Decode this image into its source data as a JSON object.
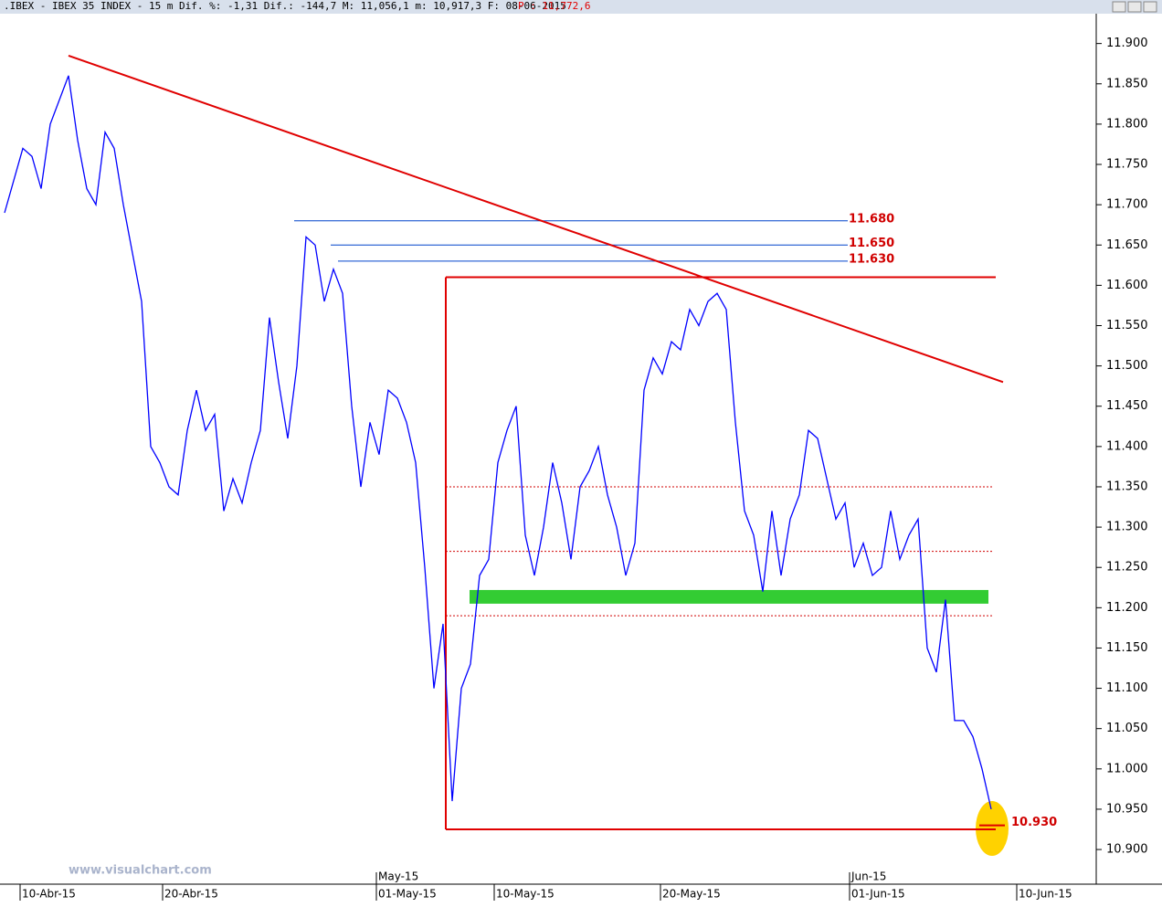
{
  "chart_data": {
    "type": "line",
    "title": ".IBEX - IBEX 35 INDEX -  15 m Dif. %: -1,31 Dif.: -144,7 M: 11,056,1 m: 10,917,3 F: 08-06-2015",
    "price_label": "P : 11,772,6",
    "watermark": "www.visualchart.com",
    "series": [
      {
        "name": "IBEX 35 INDEX",
        "color": "#0000ff",
        "values": [
          11690,
          11730,
          11770,
          11760,
          11720,
          11800,
          11830,
          11860,
          11780,
          11720,
          11700,
          11790,
          11770,
          11700,
          11640,
          11580,
          11400,
          11380,
          11350,
          11340,
          11420,
          11470,
          11420,
          11440,
          11320,
          11360,
          11330,
          11380,
          11420,
          11560,
          11480,
          11410,
          11500,
          11660,
          11650,
          11580,
          11620,
          11590,
          11450,
          11350,
          11430,
          11390,
          11470,
          11460,
          11430,
          11380,
          11250,
          11100,
          11180,
          10960,
          11100,
          11130,
          11240,
          11260,
          11380,
          11420,
          11450,
          11290,
          11240,
          11300,
          11380,
          11330,
          11260,
          11350,
          11370,
          11400,
          11340,
          11300,
          11240,
          11280,
          11470,
          11510,
          11490,
          11530,
          11520,
          11570,
          11550,
          11580,
          11590,
          11570,
          11430,
          11320,
          11290,
          11220,
          11320,
          11240,
          11310,
          11340,
          11420,
          11410,
          11360,
          11310,
          11330,
          11250,
          11280,
          11240,
          11250,
          11320,
          11260,
          11290,
          11310,
          11150,
          11120,
          11210,
          11060,
          11060,
          11040,
          11000,
          10950
        ]
      }
    ],
    "xlim": [
      0,
      120
    ],
    "xticks": [
      {
        "value": 1.7,
        "label": "10-Abr-15"
      },
      {
        "value": 17.3,
        "label": "20-Abr-15"
      },
      {
        "value": 40.7,
        "label": "01-May-15"
      },
      {
        "value": 53.6,
        "label": "10-May-15"
      },
      {
        "value": 71.8,
        "label": "20-May-15"
      },
      {
        "value": 92.5,
        "label": "01-Jun-15"
      },
      {
        "value": 110.8,
        "label": "10-Jun-15"
      }
    ],
    "month_labels": [
      {
        "value": 40.7,
        "label": "May-15"
      },
      {
        "value": 92.5,
        "label": "Jun-15"
      }
    ],
    "ylim": [
      10857,
      11954
    ],
    "yticks": [
      {
        "value": 11900,
        "label": "11.900"
      },
      {
        "value": 11850,
        "label": "11.850"
      },
      {
        "value": 11800,
        "label": "11.800"
      },
      {
        "value": 11750,
        "label": "11.750"
      },
      {
        "value": 11700,
        "label": "11.700"
      },
      {
        "value": 11650,
        "label": "11.650"
      },
      {
        "value": 11600,
        "label": "11.600"
      },
      {
        "value": 11550,
        "label": "11.550"
      },
      {
        "value": 11500,
        "label": "11.500"
      },
      {
        "value": 11450,
        "label": "11.450"
      },
      {
        "value": 11400,
        "label": "11.400"
      },
      {
        "value": 11350,
        "label": "11.350"
      },
      {
        "value": 11300,
        "label": "11.300"
      },
      {
        "value": 11250,
        "label": "11.250"
      },
      {
        "value": 11200,
        "label": "11.200"
      },
      {
        "value": 11150,
        "label": "11.150"
      },
      {
        "value": 11100,
        "label": "11.100"
      },
      {
        "value": 11050,
        "label": "11.050"
      },
      {
        "value": 11000,
        "label": "11.000"
      },
      {
        "value": 10950,
        "label": "10.950"
      },
      {
        "value": 10900,
        "label": "10.900"
      }
    ],
    "levels": [
      {
        "value": 11680,
        "label": "11.680"
      },
      {
        "value": 11650,
        "label": "11.650"
      },
      {
        "value": 11630,
        "label": "11.630"
      }
    ],
    "low_level": {
      "value": 10930,
      "label": "10.930"
    },
    "trendline": {
      "from": 11885,
      "to": 11480
    },
    "box": {
      "top": 11610,
      "bottom": 10925
    },
    "dotted_levels": [
      11350,
      11270,
      11190
    ],
    "support_band": [
      11205,
      11222
    ]
  }
}
